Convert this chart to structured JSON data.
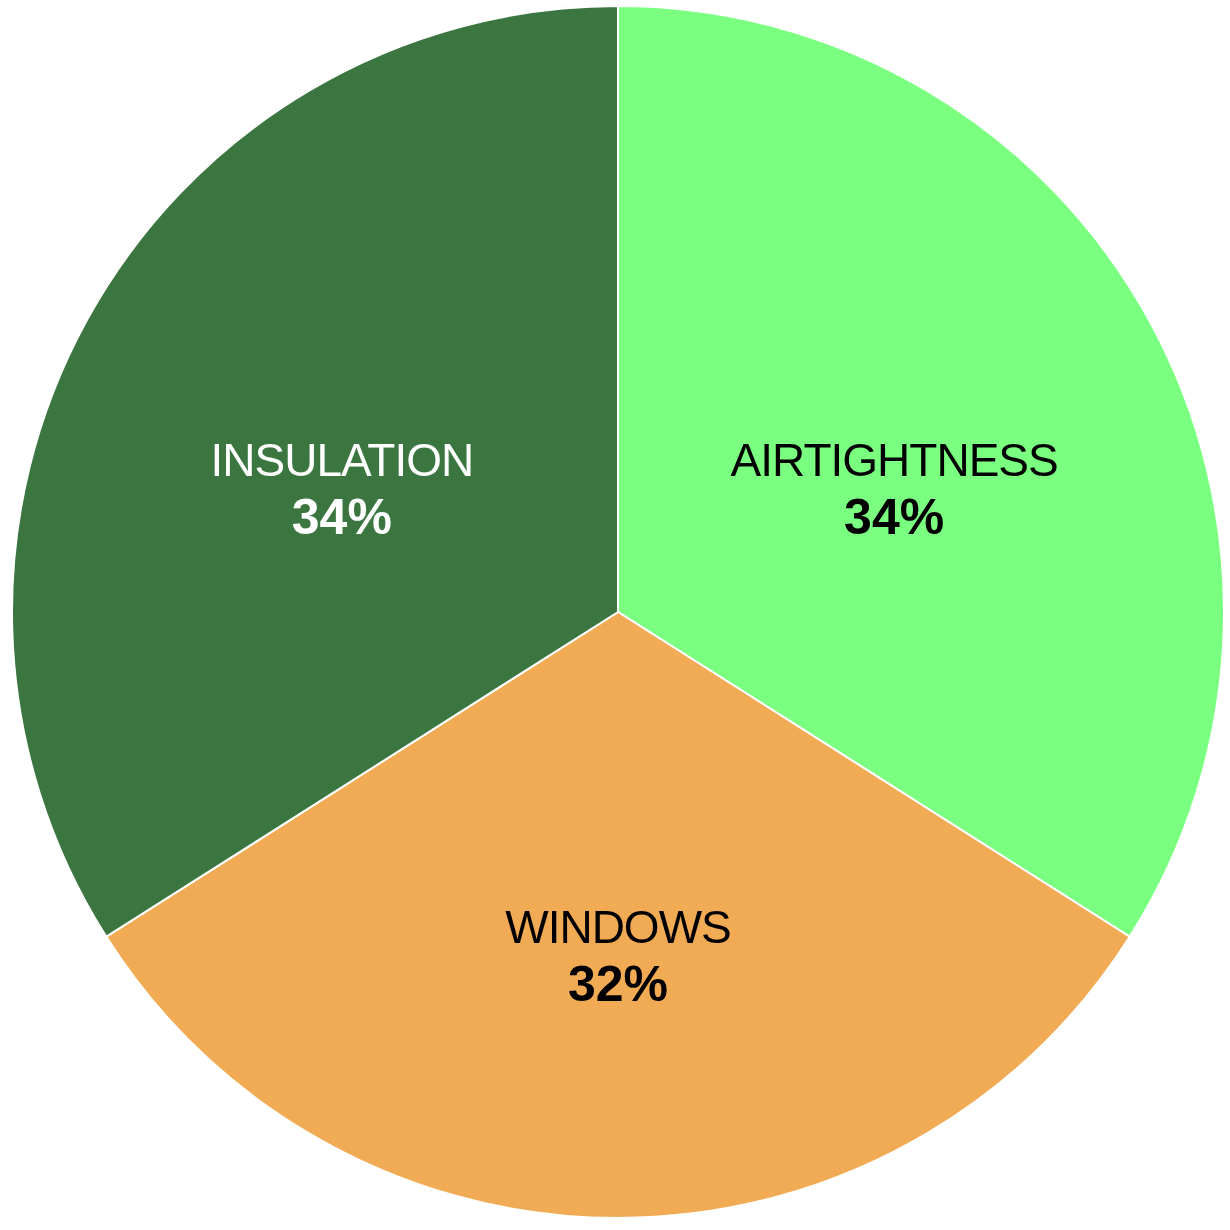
{
  "chart_data": {
    "type": "pie",
    "categories": [
      "AIRTIGHTNESS",
      "WINDOWS",
      "INSULATION"
    ],
    "values": [
      34,
      32,
      34
    ],
    "value_labels": [
      "34%",
      "32%",
      "34%"
    ],
    "colors": [
      "#7bff80",
      "#f2ab55",
      "#3b7640"
    ]
  }
}
